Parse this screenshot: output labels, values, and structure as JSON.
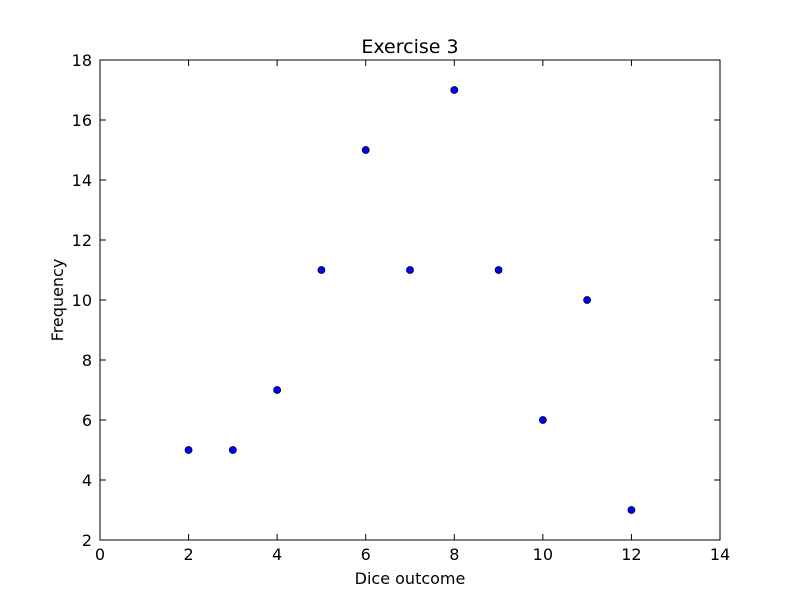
{
  "chart_data": {
    "type": "scatter",
    "title": "Exercise 3",
    "xlabel": "Dice outcome",
    "ylabel": "Frequency",
    "xlim": [
      0,
      14
    ],
    "ylim": [
      2,
      18
    ],
    "xticks": [
      0,
      2,
      4,
      6,
      8,
      10,
      12,
      14
    ],
    "yticks": [
      2,
      4,
      6,
      8,
      10,
      12,
      14,
      16,
      18
    ],
    "grid": false,
    "marker_color": "#0000ff",
    "marker_edge_color": "#000000",
    "x": [
      2,
      3,
      4,
      5,
      6,
      7,
      8,
      9,
      10,
      11,
      12
    ],
    "y": [
      5,
      5,
      7,
      11,
      15,
      11,
      17,
      11,
      6,
      10,
      3
    ]
  }
}
